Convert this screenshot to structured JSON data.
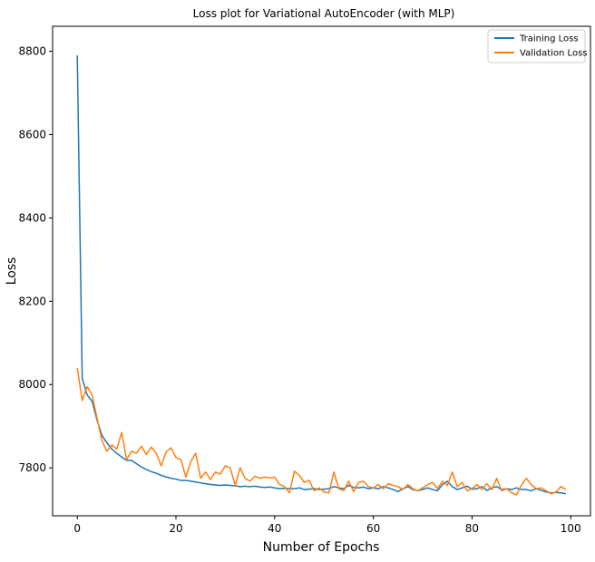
{
  "chart_data": {
    "type": "line",
    "title": "Loss plot for Variational AutoEncoder (with MLP)",
    "xlabel": "Number of Epochs",
    "ylabel": "Loss",
    "xlim": [
      -5,
      104
    ],
    "ylim": [
      7685,
      8860
    ],
    "x_ticks": [
      0,
      20,
      40,
      60,
      80,
      100
    ],
    "y_ticks": [
      7800,
      8000,
      8200,
      8400,
      8600,
      8800
    ],
    "legend_position": "top-right",
    "grid": false,
    "series": [
      {
        "name": "Training Loss",
        "color": "#1f77b4",
        "values": [
          8790,
          8015,
          7975,
          7960,
          7915,
          7878,
          7860,
          7845,
          7835,
          7826,
          7818,
          7818,
          7810,
          7802,
          7796,
          7791,
          7787,
          7782,
          7778,
          7775,
          7773,
          7770,
          7770,
          7768,
          7766,
          7764,
          7762,
          7760,
          7759,
          7758,
          7759,
          7758,
          7757,
          7755,
          7756,
          7755,
          7756,
          7754,
          7753,
          7754,
          7752,
          7750,
          7751,
          7750,
          7750,
          7752,
          7748,
          7749,
          7750,
          7748,
          7749,
          7750,
          7755,
          7752,
          7750,
          7758,
          7753,
          7752,
          7754,
          7750,
          7752,
          7750,
          7755,
          7752,
          7748,
          7743,
          7750,
          7755,
          7748,
          7745,
          7748,
          7752,
          7748,
          7745,
          7760,
          7768,
          7755,
          7748,
          7752,
          7756,
          7749,
          7750,
          7755,
          7746,
          7752,
          7755,
          7748,
          7750,
          7748,
          7752,
          7748,
          7748,
          7745,
          7750,
          7746,
          7742,
          7740,
          7741,
          7740,
          7738
        ]
      },
      {
        "name": "Validation Loss",
        "color": "#ff7f0e",
        "values": [
          8040,
          7962,
          7995,
          7975,
          7920,
          7865,
          7840,
          7855,
          7845,
          7885,
          7820,
          7840,
          7835,
          7852,
          7832,
          7850,
          7835,
          7805,
          7838,
          7848,
          7825,
          7820,
          7778,
          7815,
          7835,
          7775,
          7790,
          7772,
          7790,
          7785,
          7805,
          7800,
          7758,
          7800,
          7775,
          7768,
          7780,
          7775,
          7778,
          7776,
          7778,
          7760,
          7755,
          7740,
          7792,
          7782,
          7765,
          7770,
          7745,
          7752,
          7742,
          7740,
          7790,
          7750,
          7745,
          7768,
          7743,
          7765,
          7768,
          7755,
          7752,
          7760,
          7750,
          7762,
          7758,
          7755,
          7748,
          7760,
          7750,
          7745,
          7752,
          7760,
          7765,
          7750,
          7768,
          7758,
          7790,
          7755,
          7765,
          7745,
          7750,
          7760,
          7748,
          7762,
          7748,
          7775,
          7745,
          7750,
          7740,
          7735,
          7758,
          7775,
          7760,
          7750,
          7752,
          7745,
          7738,
          7742,
          7755,
          7748
        ]
      }
    ]
  }
}
